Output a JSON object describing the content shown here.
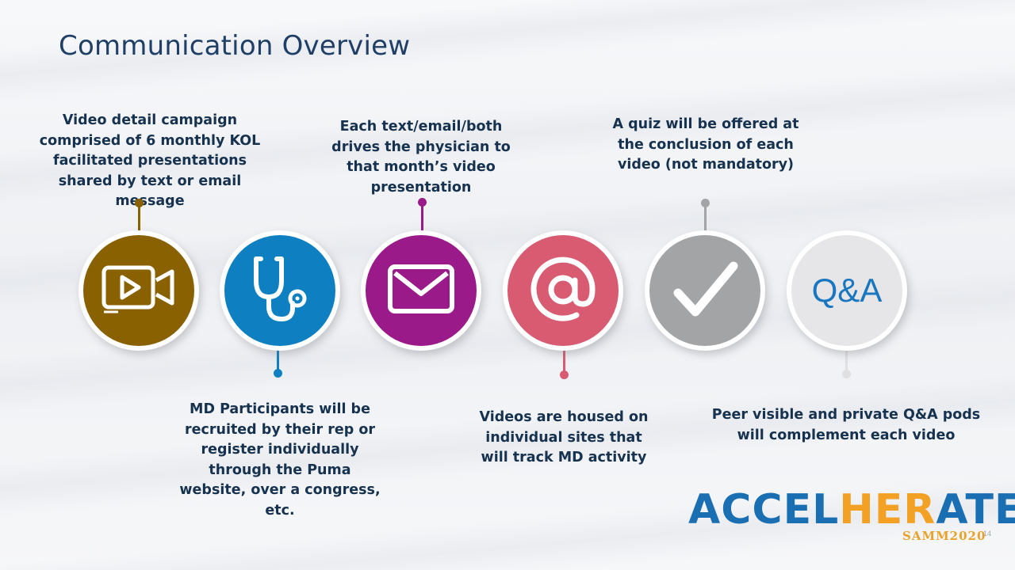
{
  "slide": {
    "title": "Communication Overview",
    "page_number": "14"
  },
  "steps": [
    {
      "icon": "video-camera-icon",
      "color": "#8a6100",
      "caption": "Video detail campaign comprised of 6 monthly KOL facilitated presentations shared by text or email message",
      "position": "top"
    },
    {
      "icon": "stethoscope-icon",
      "color": "#0e80c2",
      "caption": "MD Participants will be recruited by their rep or register individually through the Puma website, over a congress, etc.",
      "position": "bottom"
    },
    {
      "icon": "envelope-icon",
      "color": "#9a1a8a",
      "caption": "Each text/email/both drives the physician to that month’s video presentation",
      "position": "top"
    },
    {
      "icon": "at-sign-icon",
      "color": "#d85b71",
      "caption": "Videos are housed on individual sites that will track MD activity",
      "position": "bottom"
    },
    {
      "icon": "checkmark-icon",
      "color": "#a3a4a6",
      "caption": "A quiz will be offered at the conclusion of each video (not mandatory)",
      "position": "top"
    },
    {
      "icon": "qa-icon",
      "color": "#e6e6e8",
      "label": "Q&A",
      "caption": "Peer visible and private Q&A pods will complement each video",
      "position": "bottom"
    }
  ],
  "logo": {
    "part1": "ACCEL",
    "part2": "HER",
    "part3": "ATE",
    "subtitle": "SAMM2020",
    "color_blue": "#1a6fb3",
    "color_orange": "#f2a124"
  }
}
